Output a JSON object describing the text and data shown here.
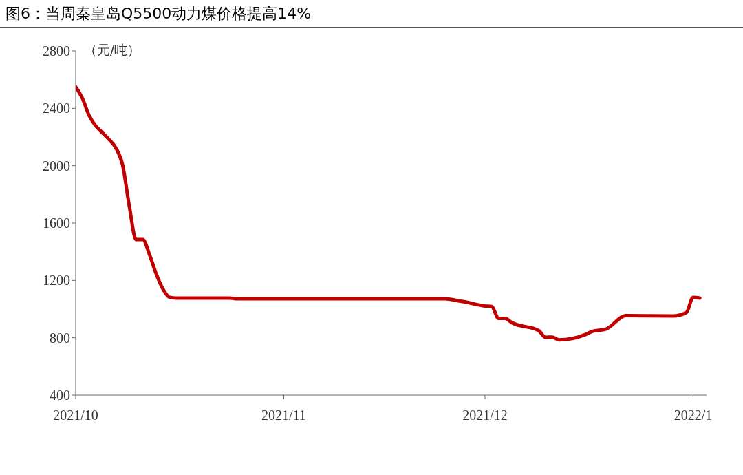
{
  "chart_data": {
    "type": "line",
    "title": "图6：当周秦皇岛Q5500动力煤价格提高14%",
    "ylabel": "（元/吨）",
    "x": [
      "2021-10-01",
      "2021-10-02",
      "2021-10-03",
      "2021-10-04",
      "2021-10-05",
      "2021-10-06",
      "2021-10-07",
      "2021-10-08",
      "2021-10-09",
      "2021-10-10",
      "2021-10-11",
      "2021-10-12",
      "2021-10-13",
      "2021-10-14",
      "2021-10-15",
      "2021-10-16",
      "2021-10-24",
      "2021-10-25",
      "2021-11-25",
      "2021-11-27",
      "2021-11-28",
      "2021-12-01",
      "2021-12-02",
      "2021-12-03",
      "2021-12-04",
      "2021-12-05",
      "2021-12-09",
      "2021-12-10",
      "2021-12-11",
      "2021-12-12",
      "2021-12-16",
      "2021-12-17",
      "2021-12-19",
      "2021-12-22",
      "2021-12-29",
      "2021-12-31",
      "2022-01-01",
      "2022-01-02"
    ],
    "series": [
      {
        "color": "#c00000",
        "values": [
          2550,
          2470,
          2350,
          2277,
          2229,
          2181,
          2123,
          2003,
          1715,
          1485,
          1485,
          1380,
          1245,
          1140,
          1082,
          1077,
          1077,
          1072,
          1072,
          1058,
          1050,
          1022,
          1018,
          935,
          935,
          905,
          850,
          803,
          805,
          785,
          823,
          845,
          860,
          955,
          952,
          976,
          1082,
          1077
        ]
      }
    ],
    "xlim": [
      "2021-10-01",
      "2022-01-03"
    ],
    "xticks": [
      {
        "value": "2021-10-01",
        "label": "2021/10"
      },
      {
        "value": "2021-11-01",
        "label": "2021/11"
      },
      {
        "value": "2021-12-01",
        "label": "2021/12"
      },
      {
        "value": "2022-01-01",
        "label": "2022/1"
      }
    ],
    "ylim": [
      400,
      2800
    ],
    "yticks": [
      400,
      800,
      1200,
      1600,
      2000,
      2400,
      2800
    ],
    "grid": false,
    "legend": false,
    "marker": "none",
    "line_style": "solid"
  }
}
